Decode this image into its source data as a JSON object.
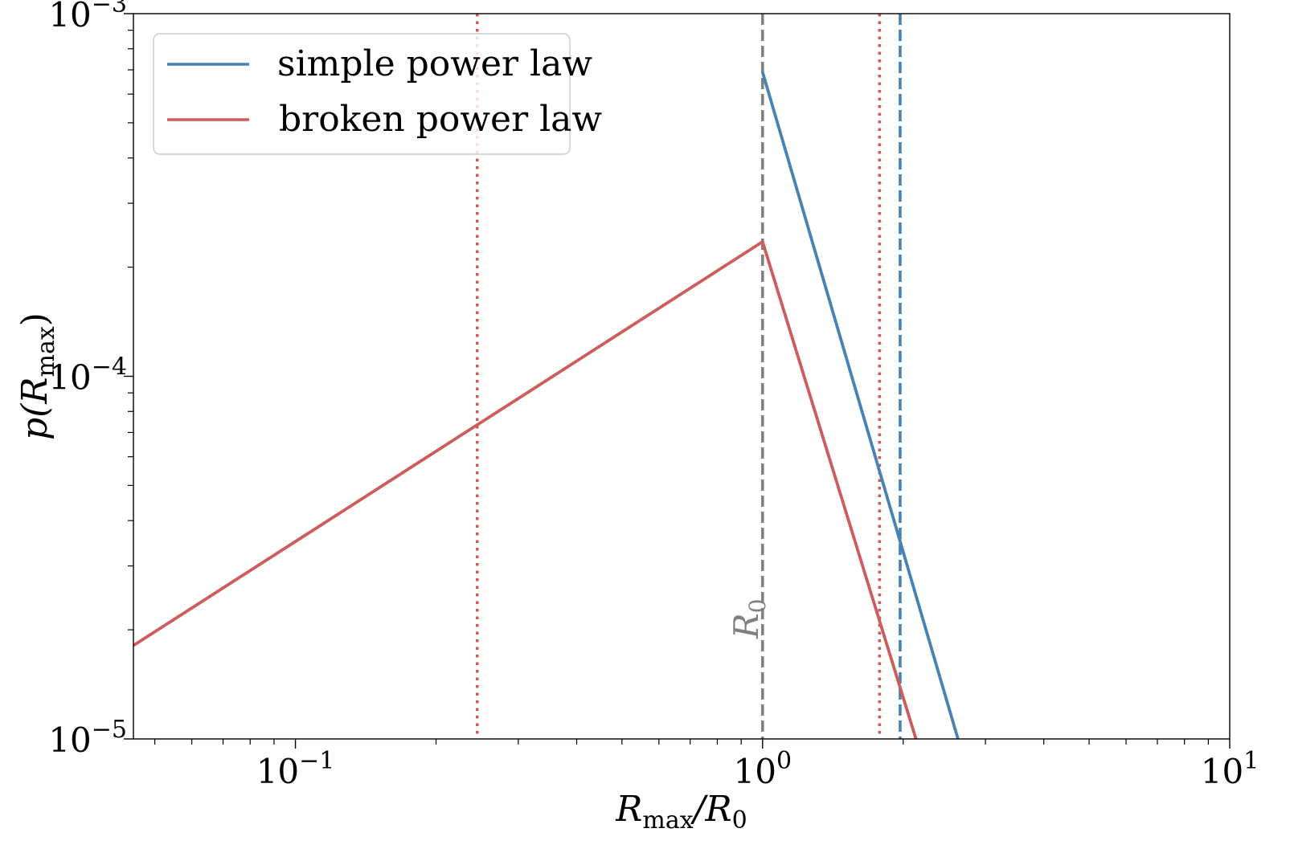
{
  "chart_data": {
    "type": "line",
    "xscale": "log",
    "yscale": "log",
    "xlim": [
      0.045,
      10
    ],
    "ylim": [
      1e-05,
      0.001
    ],
    "xlabel": {
      "main": "R",
      "sub": "max",
      "tail": "/R",
      "tail_sub": "0"
    },
    "ylabel": {
      "pre": "p(R",
      "sub": "max",
      "post": ")"
    },
    "x_ticks": [
      {
        "value": 0.1,
        "base": "10",
        "exp": "−1"
      },
      {
        "value": 1,
        "base": "10",
        "exp": "0"
      },
      {
        "value": 10,
        "base": "10",
        "exp": "1"
      }
    ],
    "y_ticks": [
      {
        "value": 1e-05,
        "base": "10",
        "exp": "−5"
      },
      {
        "value": 0.0001,
        "base": "10",
        "exp": "−4"
      },
      {
        "value": 0.001,
        "base": "10",
        "exp": "−3"
      }
    ],
    "legend": {
      "placement": "top-left"
    },
    "series": [
      {
        "name": "simple power law",
        "color": "#4682b4",
        "points": [
          [
            1.0,
            0.00069
          ],
          [
            2.62,
            1e-05
          ]
        ]
      },
      {
        "name": "broken power law",
        "color": "#cd5c5c",
        "points": [
          [
            0.045,
            1.81e-05
          ],
          [
            1.0,
            0.000235
          ],
          [
            2.13,
            1e-05
          ]
        ]
      }
    ],
    "vlines": [
      {
        "x": 1.0,
        "color": "#808080",
        "style": "dashed",
        "label": "R",
        "label_sub": "0"
      },
      {
        "x": 0.245,
        "color": "#cd5c5c",
        "style": "dotted"
      },
      {
        "x": 1.78,
        "color": "#cd5c5c",
        "style": "dotted"
      },
      {
        "x": 1.97,
        "color": "#4682b4",
        "style": "dashed"
      }
    ]
  }
}
